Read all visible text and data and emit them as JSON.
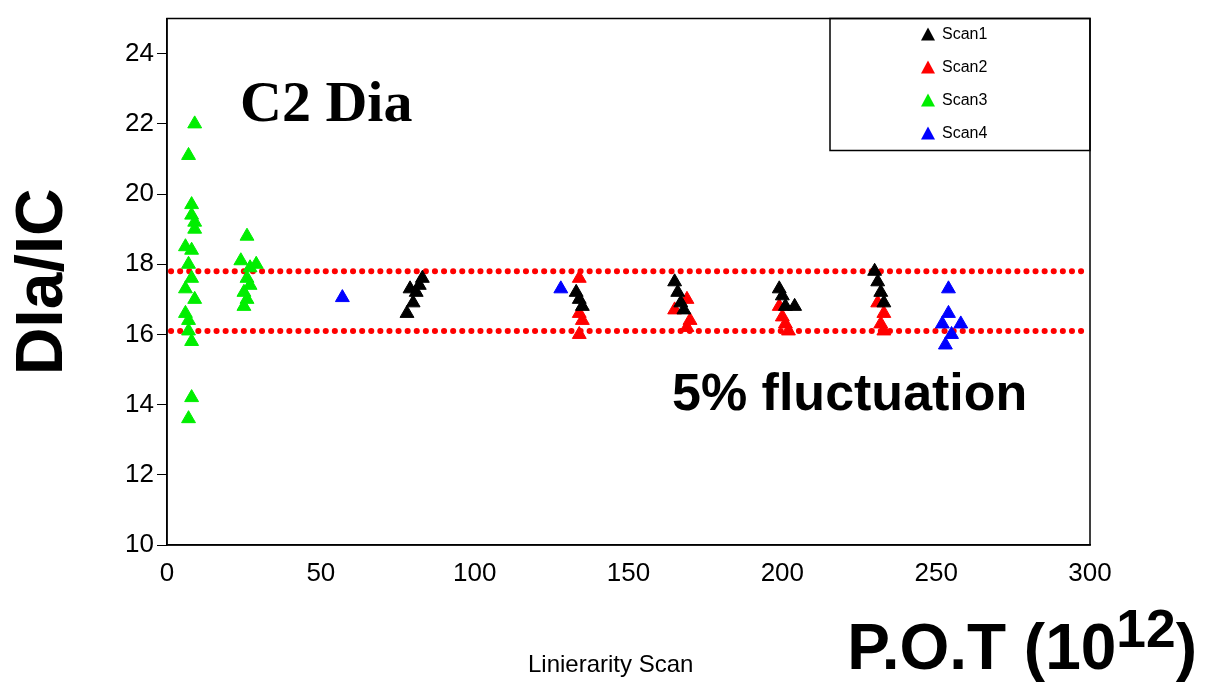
{
  "chart_data": {
    "type": "scatter",
    "title": "Linierarity Scan",
    "xlabel": "P.O.T (10$^{12}$)",
    "ylabel": "DIa/IC",
    "annotations": [
      "C2 Dia",
      "5% fluctuation"
    ],
    "xlim": [
      0,
      300
    ],
    "xticks": [
      0,
      50,
      100,
      150,
      200,
      250,
      300
    ],
    "ylim": [
      10,
      25
    ],
    "yticks": [
      10,
      12,
      14,
      16,
      18,
      20,
      22,
      24
    ],
    "marker": "triangle",
    "grid": false,
    "legend": "top right",
    "ref_lines": [
      {
        "axis": "y",
        "value": 17.8,
        "color": "#ff0000",
        "line_style": "dotted"
      },
      {
        "axis": "y",
        "value": 16.1,
        "color": "#ff0000",
        "line_style": "dotted"
      }
    ],
    "series": [
      {
        "name": "Scan1",
        "color": "#000000",
        "x": [
          78,
          81,
          82,
          83,
          79,
          80,
          133,
          134,
          135,
          165,
          166,
          167,
          168,
          199,
          200,
          201,
          204,
          230,
          231,
          232,
          233
        ],
        "values": [
          16.6,
          17.2,
          17.4,
          17.6,
          17.3,
          16.9,
          17.2,
          17.0,
          16.8,
          17.5,
          17.2,
          16.9,
          16.7,
          17.3,
          17.1,
          16.8,
          16.8,
          17.8,
          17.5,
          17.2,
          16.9
        ]
      },
      {
        "name": "Scan2",
        "color": "#ff0000",
        "x": [
          134,
          134,
          135,
          134,
          165,
          169,
          170,
          169,
          199,
          200,
          201,
          202,
          231,
          233,
          232,
          233
        ],
        "values": [
          17.6,
          16.6,
          16.4,
          16.0,
          16.7,
          17.0,
          16.4,
          16.2,
          16.8,
          16.5,
          16.3,
          16.1,
          16.9,
          16.6,
          16.3,
          16.1
        ]
      },
      {
        "name": "Scan3",
        "color": "#00ee00",
        "x": [
          9,
          7,
          8,
          8,
          9,
          9,
          6,
          8,
          7,
          8,
          6,
          9,
          6,
          7,
          7,
          8,
          8,
          7,
          26,
          24,
          29,
          27,
          26,
          27,
          25,
          26,
          25
        ],
        "values": [
          22.0,
          21.1,
          19.7,
          19.4,
          19.2,
          19.0,
          18.5,
          18.4,
          18.0,
          17.6,
          17.3,
          17.0,
          16.6,
          16.4,
          16.1,
          15.8,
          14.2,
          13.6,
          18.8,
          18.1,
          18.0,
          17.9,
          17.6,
          17.4,
          17.2,
          17.0,
          16.8
        ]
      },
      {
        "name": "Scan4",
        "color": "#0000ff",
        "x": [
          57,
          128,
          254,
          254,
          252,
          255,
          253,
          258
        ],
        "values": [
          17.05,
          17.3,
          17.3,
          16.6,
          16.3,
          16.0,
          15.7,
          16.3
        ]
      }
    ]
  }
}
